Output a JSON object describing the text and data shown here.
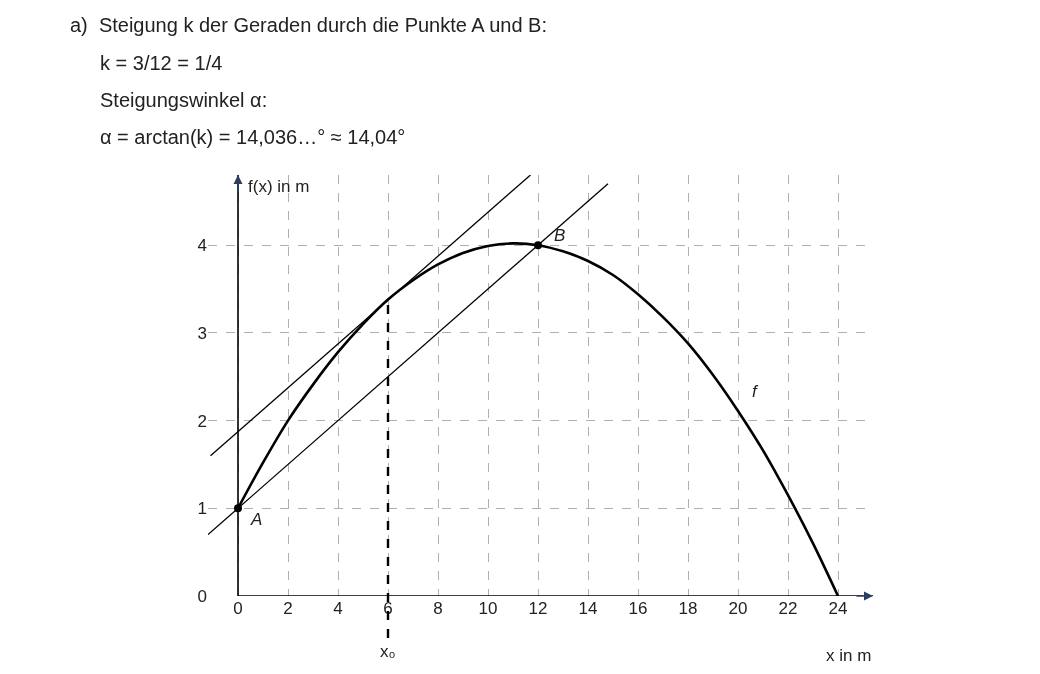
{
  "chart_data": {
    "type": "line",
    "xlabel": "x in m",
    "ylabel": "f(x) in m",
    "xlim": [
      -1.2,
      25.4
    ],
    "ylim": [
      0,
      4.8
    ],
    "xticks": [
      0,
      2,
      4,
      6,
      8,
      10,
      12,
      14,
      16,
      18,
      20,
      22,
      24
    ],
    "yticks": [
      0,
      1,
      2,
      3,
      4
    ],
    "grid": true,
    "legend": false,
    "series": [
      {
        "name": "f",
        "color": "#000000",
        "x": [
          0,
          1,
          2,
          3,
          4,
          5,
          6,
          7,
          8,
          9,
          10,
          11,
          12,
          13,
          14,
          15,
          16,
          17,
          18,
          19,
          20,
          21,
          22,
          23,
          24
        ],
        "values": [
          1,
          1.52,
          2.0,
          2.41,
          2.78,
          3.1,
          3.38,
          3.6,
          3.78,
          3.91,
          3.99,
          4.02,
          4.0,
          3.93,
          3.82,
          3.66,
          3.44,
          3.18,
          2.88,
          2.52,
          2.11,
          1.66,
          1.15,
          0.6,
          0
        ]
      },
      {
        "color": "#000000",
        "x": [
          -1.2,
          14.8
        ],
        "values": [
          0.7,
          4.7
        ]
      },
      {
        "color": "#000000",
        "x": [
          -1.1,
          11.7
        ],
        "values": [
          1.6,
          4.8
        ]
      },
      {
        "type": "scatter",
        "color": "#000000",
        "marker": "circle",
        "x": [
          0,
          12
        ],
        "values": [
          1,
          4
        ]
      }
    ],
    "ref_lines": [
      {
        "axis": "x",
        "value": 6,
        "label": "x₀",
        "line_style": "dashed",
        "color": "#000000"
      }
    ],
    "annotations": [
      "a)  Steigung k der Geraden durch die Punkte A und B:",
      "k = 3/12 = 1/4",
      "Steigungswinkel α:",
      "α = arctan(k) = 14,036…° ≈ 14,04°",
      {
        "text": "A",
        "x": 0,
        "y": 1
      },
      {
        "text": "B",
        "x": 12,
        "y": 4
      }
    ]
  }
}
